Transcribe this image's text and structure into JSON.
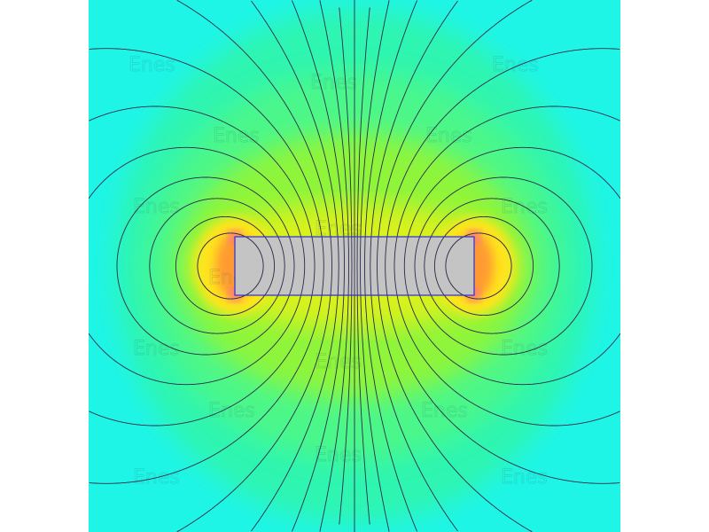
{
  "plot": {
    "watermark": "Enes",
    "colors": {
      "background": "#1ff5e6",
      "outer_field": "#2ef5b0",
      "mid_field": "#4cf78a",
      "inner_field": "#8ef53a",
      "high_field": "#d8f21a",
      "peak_field": "#ffe51a",
      "hot_field": "#ff9a30",
      "max_field": "#ff33ff",
      "magnet_fill": "#c4c4c4",
      "magnet_edge": "#3030c8",
      "field_lines": "#2a2a4a"
    }
  }
}
